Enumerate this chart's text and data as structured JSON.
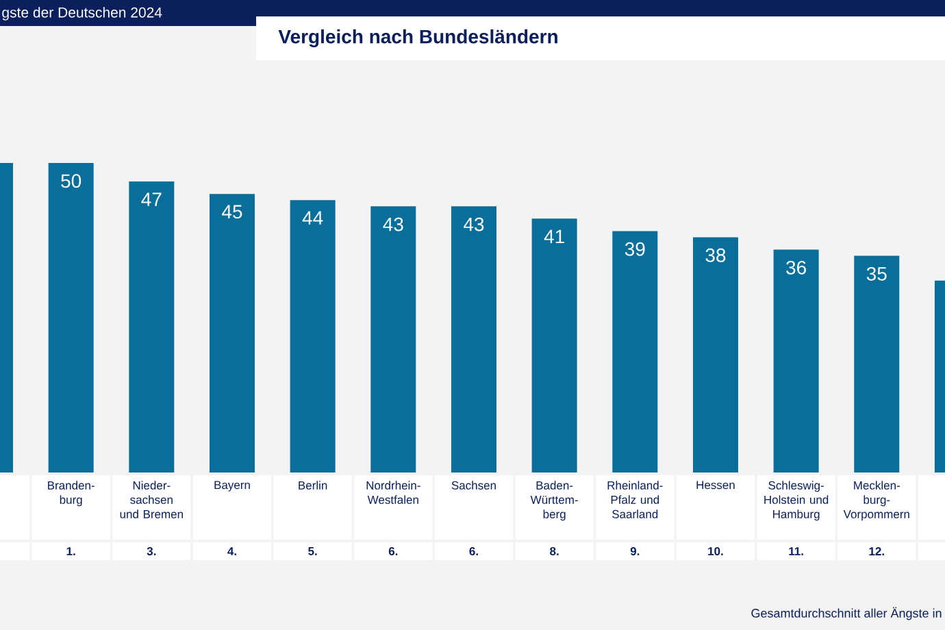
{
  "chart_data": {
    "type": "bar",
    "title": "gste der Deutschen 2024",
    "subtitle": "Vergleich nach Bundesländern",
    "categories": [
      null,
      "Branden- burg",
      "Nieder- sachsen und Bremen",
      "Bayern",
      "Berlin",
      "Nordrhein- Westfalen",
      "Sachsen",
      "Baden- Württem- berg",
      "Rheinland- Pfalz und Saarland",
      "Hessen",
      "Schleswig- Holstein und Hamburg",
      "Mecklen- burg- Vorpommern",
      null
    ],
    "values": [
      50,
      50,
      47,
      45,
      44,
      43,
      43,
      41,
      39,
      38,
      36,
      35,
      31
    ],
    "value_labels": [
      null,
      "50",
      "47",
      "45",
      "44",
      "43",
      "43",
      "41",
      "39",
      "38",
      "36",
      "35",
      null
    ],
    "color": "#0a6e9b",
    "annotations": [
      "1.",
      "3.",
      "4.",
      "5.",
      "6.",
      "6.",
      "8.",
      "9.",
      "10.",
      "11.",
      "12.",
      "Gesamtdurchschnitt aller Ängste in"
    ]
  }
}
